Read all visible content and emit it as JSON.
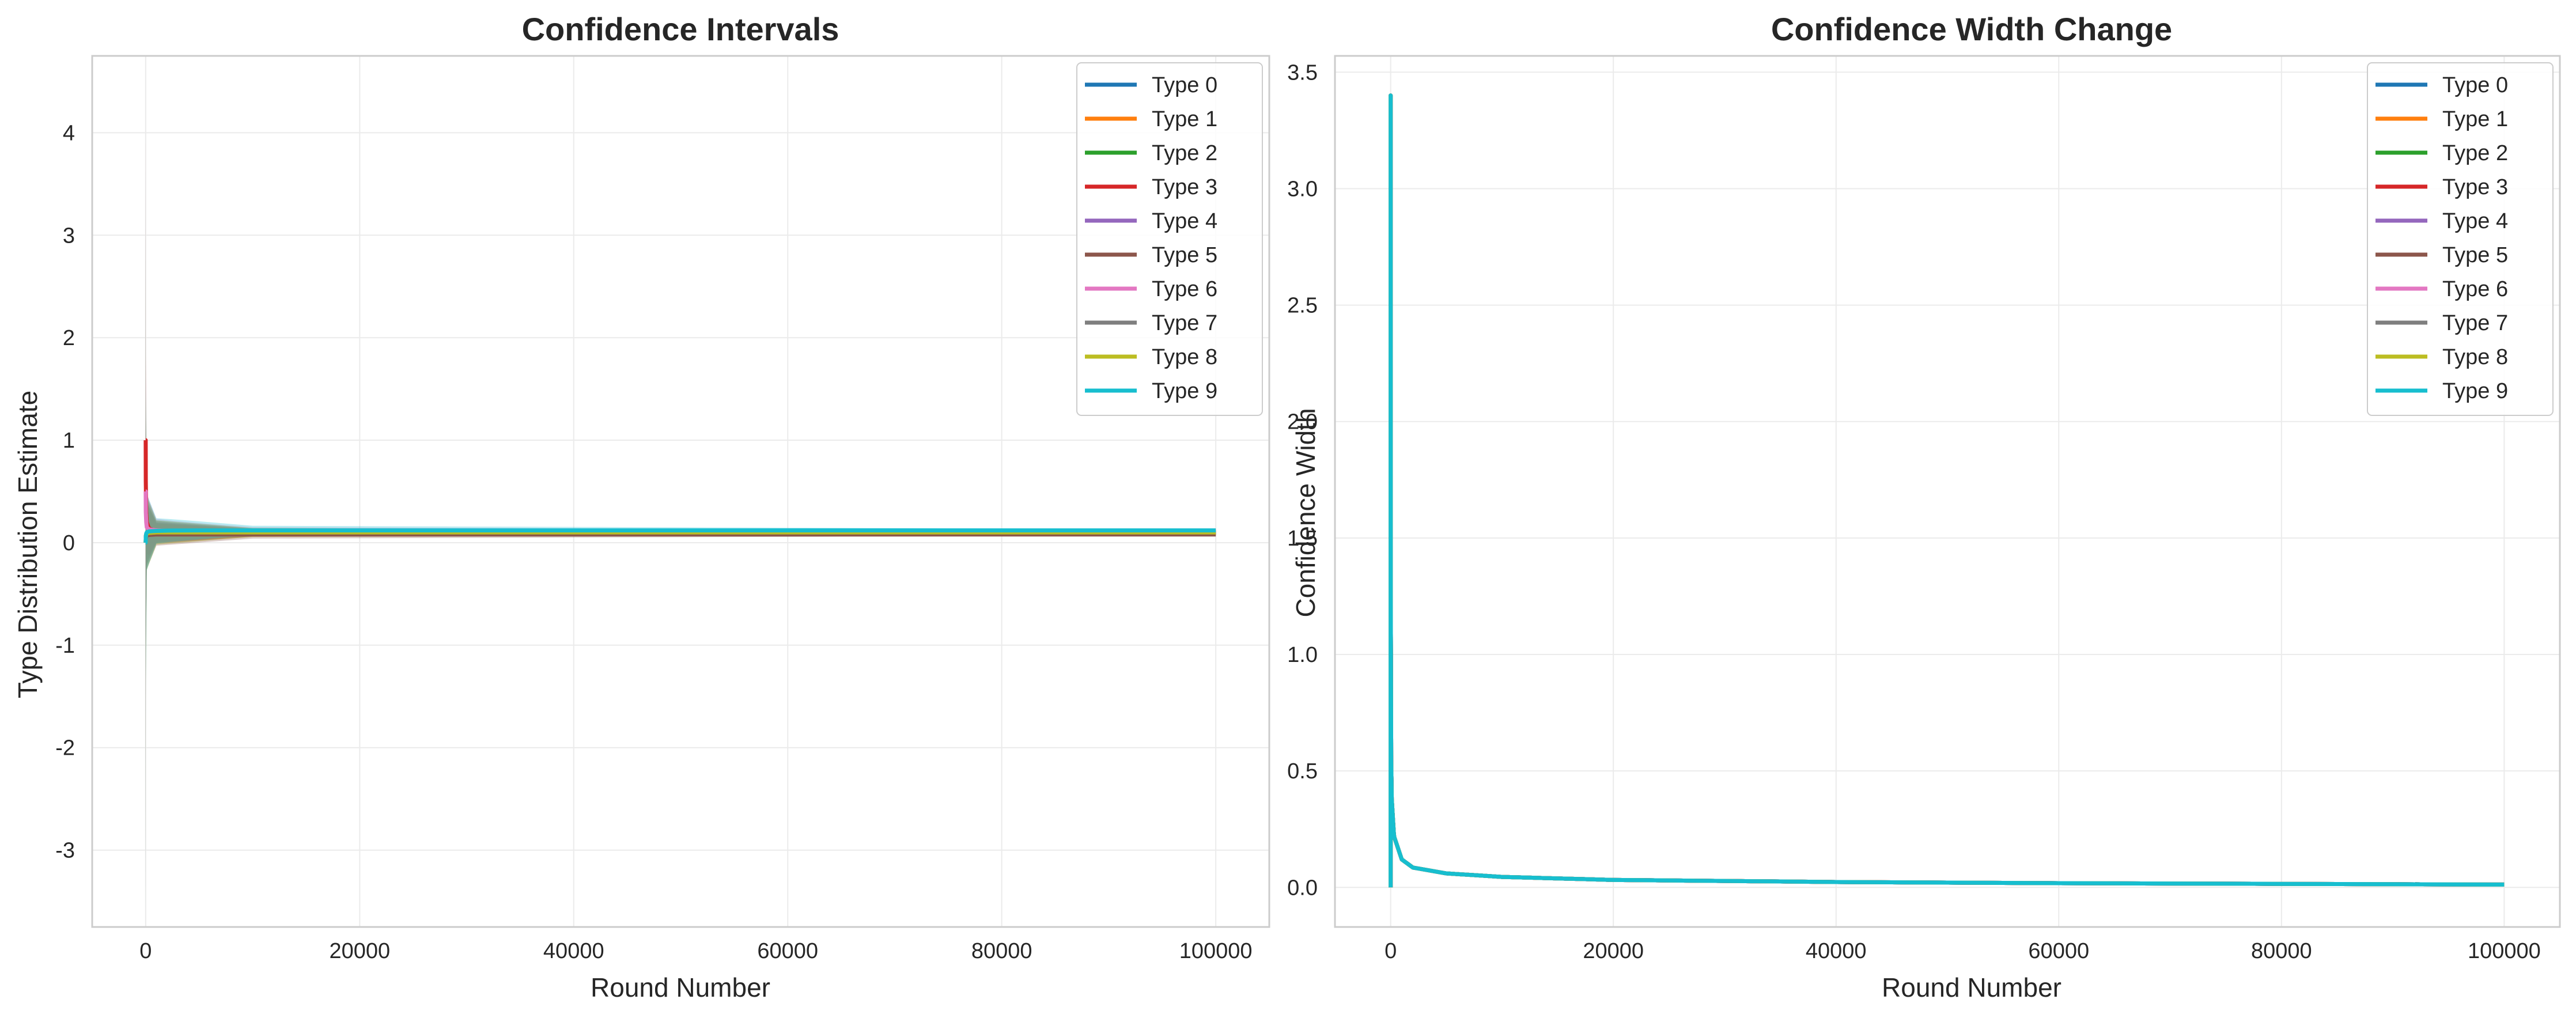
{
  "chart_data": [
    {
      "type": "line",
      "title": "Confidence Intervals",
      "xlabel": "Round Number",
      "ylabel": "Type Distribution Estimate",
      "xlim": [
        -5000,
        105000
      ],
      "ylim": [
        -3.75,
        4.75
      ],
      "xticks": [
        0,
        20000,
        40000,
        60000,
        80000,
        100000
      ],
      "xtick_labels": [
        "0",
        "20000",
        "40000",
        "60000",
        "80000",
        "100000"
      ],
      "yticks": [
        -3,
        -2,
        -1,
        0,
        1,
        2,
        3,
        4
      ],
      "ytick_labels": [
        "-3",
        "-2",
        "-1",
        "0",
        "1",
        "2",
        "3",
        "4"
      ],
      "grid": true,
      "legend": "top-right",
      "series": [
        {
          "name": "Type 0",
          "color": "#1f77b4",
          "final": 0.1,
          "x": [
            1,
            10,
            50,
            100,
            300,
            1000,
            3000,
            10000,
            30000,
            100000
          ],
          "y": [
            0.1,
            0.1,
            0.1,
            0.1,
            0.1,
            0.1,
            0.1,
            0.1,
            0.1,
            0.1
          ]
        },
        {
          "name": "Type 1",
          "color": "#ff7f0e",
          "final": 0.09,
          "x": [
            1,
            10,
            50,
            100,
            300,
            1000,
            3000,
            10000,
            30000,
            100000
          ],
          "y": [
            0.05,
            0.07,
            0.08,
            0.08,
            0.085,
            0.09,
            0.09,
            0.09,
            0.09,
            0.09
          ]
        },
        {
          "name": "Type 2",
          "color": "#2ca02c",
          "final": 0.1,
          "x": [
            1,
            10,
            50,
            100,
            300,
            1000,
            3000,
            10000,
            30000,
            100000
          ],
          "y": [
            0.0,
            0.05,
            0.08,
            0.09,
            0.095,
            0.1,
            0.1,
            0.1,
            0.1,
            0.1
          ]
        },
        {
          "name": "Type 3",
          "color": "#d62728",
          "final": 0.1,
          "x": [
            1,
            10,
            50,
            100,
            300,
            1000,
            3000,
            10000,
            30000,
            100000
          ],
          "y": [
            1.0,
            0.6,
            0.3,
            0.2,
            0.14,
            0.11,
            0.1,
            0.1,
            0.1,
            0.1
          ]
        },
        {
          "name": "Type 4",
          "color": "#9467bd",
          "final": 0.1,
          "x": [
            1,
            10,
            50,
            100,
            300,
            1000,
            3000,
            10000,
            30000,
            100000
          ],
          "y": [
            0.0,
            0.05,
            0.08,
            0.09,
            0.095,
            0.1,
            0.1,
            0.1,
            0.1,
            0.1
          ]
        },
        {
          "name": "Type 5",
          "color": "#8c564b",
          "final": 0.08,
          "x": [
            1,
            10,
            50,
            100,
            300,
            1000,
            3000,
            10000,
            30000,
            100000
          ],
          "y": [
            0.0,
            0.04,
            0.06,
            0.07,
            0.075,
            0.08,
            0.08,
            0.08,
            0.08,
            0.08
          ]
        },
        {
          "name": "Type 6",
          "color": "#e377c2",
          "final": 0.11,
          "x": [
            1,
            10,
            50,
            100,
            300,
            1000,
            3000,
            10000,
            30000,
            100000
          ],
          "y": [
            0.5,
            0.3,
            0.2,
            0.15,
            0.13,
            0.12,
            0.11,
            0.11,
            0.11,
            0.11
          ]
        },
        {
          "name": "Type 7",
          "color": "#7f7f7f",
          "final": 0.1,
          "x": [
            1,
            10,
            50,
            100,
            300,
            1000,
            3000,
            10000,
            30000,
            100000
          ],
          "y": [
            0.0,
            0.05,
            0.08,
            0.09,
            0.095,
            0.1,
            0.1,
            0.1,
            0.1,
            0.1
          ]
        },
        {
          "name": "Type 8",
          "color": "#bcbd22",
          "final": 0.1,
          "x": [
            1,
            10,
            50,
            100,
            300,
            1000,
            3000,
            10000,
            30000,
            100000
          ],
          "y": [
            0.0,
            0.05,
            0.08,
            0.09,
            0.095,
            0.1,
            0.1,
            0.1,
            0.1,
            0.1
          ]
        },
        {
          "name": "Type 9",
          "color": "#17becf",
          "final": 0.12,
          "x": [
            1,
            10,
            50,
            100,
            300,
            1000,
            3000,
            10000,
            30000,
            100000
          ],
          "y": [
            0.0,
            0.06,
            0.09,
            0.1,
            0.11,
            0.115,
            0.12,
            0.12,
            0.12,
            0.12
          ]
        }
      ],
      "confidence_band_half_width": {
        "x": [
          0,
          10,
          100,
          1000,
          10000,
          100000
        ],
        "y": [
          3.4,
          1.3,
          0.33,
          0.11,
          0.04,
          0.01
        ]
      },
      "band_opacity": 0.3
    },
    {
      "type": "line",
      "title": "Confidence Width Change",
      "xlabel": "Round Number",
      "ylabel": "Confidence Width",
      "xlim": [
        -5000,
        105000
      ],
      "ylim": [
        -0.17,
        3.57
      ],
      "xticks": [
        0,
        20000,
        40000,
        60000,
        80000,
        100000
      ],
      "xtick_labels": [
        "0",
        "20000",
        "40000",
        "60000",
        "80000",
        "100000"
      ],
      "yticks": [
        0.0,
        0.5,
        1.0,
        1.5,
        2.0,
        2.5,
        3.0,
        3.5
      ],
      "ytick_labels": [
        "0.0",
        "0.5",
        "1.0",
        "1.5",
        "2.0",
        "2.5",
        "3.0",
        "3.5"
      ],
      "grid": true,
      "legend": "top-right",
      "series": [
        {
          "name": "Type 0",
          "color": "#1f77b4"
        },
        {
          "name": "Type 1",
          "color": "#ff7f0e"
        },
        {
          "name": "Type 2",
          "color": "#2ca02c"
        },
        {
          "name": "Type 3",
          "color": "#d62728"
        },
        {
          "name": "Type 4",
          "color": "#9467bd"
        },
        {
          "name": "Type 5",
          "color": "#8c564b"
        },
        {
          "name": "Type 6",
          "color": "#e377c2"
        },
        {
          "name": "Type 7",
          "color": "#7f7f7f"
        },
        {
          "name": "Type 8",
          "color": "#bcbd22"
        },
        {
          "name": "Type 9",
          "color": "#17becf"
        }
      ],
      "shared_width_curve": {
        "x": [
          0,
          1,
          10,
          50,
          100,
          300,
          1000,
          2000,
          5000,
          10000,
          20000,
          40000,
          60000,
          80000,
          100000
        ],
        "y": [
          0.0,
          3.4,
          1.25,
          0.55,
          0.38,
          0.22,
          0.12,
          0.085,
          0.06,
          0.045,
          0.032,
          0.023,
          0.018,
          0.015,
          0.012
        ]
      }
    }
  ]
}
